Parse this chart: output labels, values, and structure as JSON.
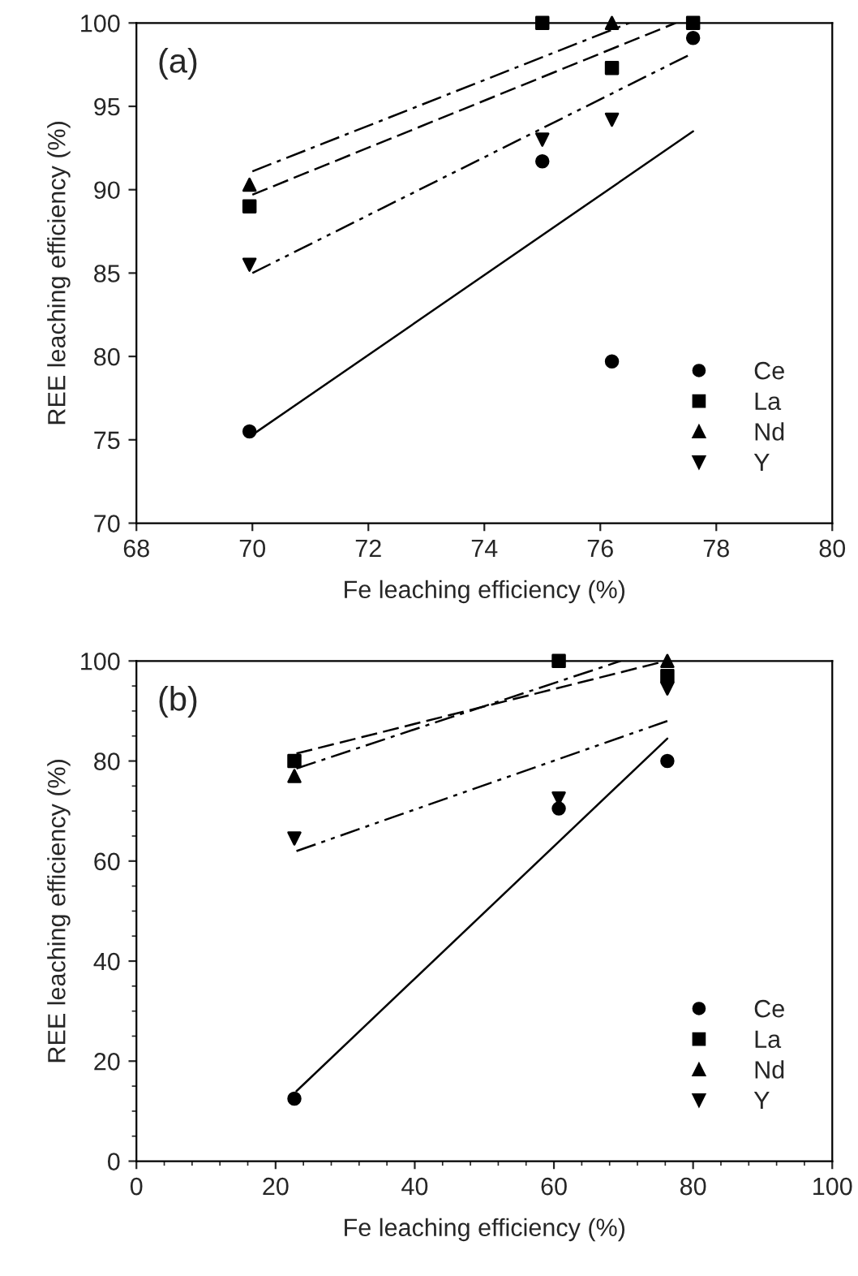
{
  "chart_data": [
    {
      "type": "scatter",
      "xlabel": "Fe leaching efficiency (%)",
      "ylabel": "REE leaching efficiency (%)",
      "annotations": [
        "(a)"
      ],
      "xlim": [
        68,
        80
      ],
      "xticks": [
        68,
        70,
        72,
        74,
        76,
        78,
        80
      ],
      "ylim": [
        70,
        100
      ],
      "yticks": [
        70,
        75,
        80,
        85,
        90,
        95,
        100
      ],
      "grid": false,
      "legend": "bottom right",
      "series": [
        {
          "name": "Ce",
          "marker": "circle",
          "color": "#000000",
          "x": [
            69.95,
            75,
            76.2,
            77.6
          ],
          "values": [
            75.5,
            91.7,
            79.7,
            99.1
          ]
        },
        {
          "name": "La",
          "marker": "square",
          "color": "#000000",
          "x": [
            69.95,
            75,
            76.2,
            77.6
          ],
          "values": [
            89,
            100,
            97.3,
            100
          ]
        },
        {
          "name": "Nd",
          "marker": "triangle",
          "color": "#000000",
          "x": [
            69.95,
            76.2
          ],
          "values": [
            90.3,
            100
          ]
        },
        {
          "name": "Y",
          "marker": "triangle_down",
          "color": "#000000",
          "x": [
            69.95,
            75,
            76.2
          ],
          "values": [
            85.5,
            93,
            94.2
          ]
        },
        {
          "type": "line",
          "line_style": "solid",
          "color": "#000000",
          "x": [
            70,
            77.6
          ],
          "values": [
            75.3,
            93.5
          ]
        },
        {
          "type": "line",
          "line_style": "dashed",
          "color": "#000000",
          "x": [
            70,
            77.3
          ],
          "values": [
            89.7,
            100
          ]
        },
        {
          "type": "line",
          "line_style": "dashdot",
          "color": "#000000",
          "x": [
            70,
            76.5
          ],
          "values": [
            91.1,
            100
          ]
        },
        {
          "type": "line",
          "line_style": "dashdotdot",
          "color": "#000000",
          "x": [
            70,
            77.6
          ],
          "values": [
            85,
            98.2
          ]
        }
      ]
    },
    {
      "type": "scatter",
      "xlabel": "Fe leaching efficiency (%)",
      "ylabel": "REE leaching efficiency (%)",
      "annotations": [
        "(b)"
      ],
      "xlim": [
        0,
        100
      ],
      "xticks": [
        0,
        {
          "value": 4,
          "label": null
        },
        {
          "value": 8,
          "label": null
        },
        {
          "value": 12,
          "label": null
        },
        {
          "value": 16,
          "label": null
        },
        20,
        {
          "value": 24,
          "label": null
        },
        {
          "value": 28,
          "label": null
        },
        {
          "value": 32,
          "label": null
        },
        {
          "value": 36,
          "label": null
        },
        40,
        {
          "value": 44,
          "label": null
        },
        {
          "value": 48,
          "label": null
        },
        {
          "value": 52,
          "label": null
        },
        {
          "value": 56,
          "label": null
        },
        60,
        {
          "value": 64,
          "label": null
        },
        {
          "value": 68,
          "label": null
        },
        {
          "value": 72,
          "label": null
        },
        {
          "value": 76,
          "label": null
        },
        80,
        {
          "value": 84,
          "label": null
        },
        {
          "value": 88,
          "label": null
        },
        {
          "value": 92,
          "label": null
        },
        {
          "value": 96,
          "label": null
        },
        100
      ],
      "ylim": [
        0,
        100
      ],
      "yticks": [
        0,
        {
          "value": 5,
          "label": null
        },
        {
          "value": 10,
          "label": null
        },
        {
          "value": 15,
          "label": null
        },
        20,
        {
          "value": 25,
          "label": null
        },
        {
          "value": 30,
          "label": null
        },
        {
          "value": 35,
          "label": null
        },
        40,
        {
          "value": 45,
          "label": null
        },
        {
          "value": 50,
          "label": null
        },
        {
          "value": 55,
          "label": null
        },
        60,
        {
          "value": 65,
          "label": null
        },
        {
          "value": 70,
          "label": null
        },
        {
          "value": 75,
          "label": null
        },
        80,
        {
          "value": 85,
          "label": null
        },
        {
          "value": 90,
          "label": null
        },
        {
          "value": 95,
          "label": null
        },
        100
      ],
      "grid": false,
      "legend": "bottom right",
      "series": [
        {
          "name": "Ce",
          "marker": "circle",
          "color": "#000000",
          "x": [
            22.7,
            60.7,
            76.3
          ],
          "values": [
            12.5,
            70.5,
            80
          ]
        },
        {
          "name": "La",
          "marker": "square",
          "color": "#000000",
          "x": [
            22.7,
            60.7,
            76.3
          ],
          "values": [
            80,
            100,
            97
          ]
        },
        {
          "name": "Nd",
          "marker": "triangle",
          "color": "#000000",
          "x": [
            22.7,
            76.3
          ],
          "values": [
            77,
            100
          ]
        },
        {
          "name": "Y",
          "marker": "triangle_down",
          "color": "#000000",
          "x": [
            22.7,
            60.7,
            76.3
          ],
          "values": [
            64.5,
            72.5,
            94.5
          ]
        },
        {
          "type": "line",
          "line_style": "solid",
          "color": "#000000",
          "x": [
            23,
            76.3
          ],
          "values": [
            14,
            84.5
          ]
        },
        {
          "type": "line",
          "line_style": "dashed",
          "color": "#000000",
          "x": [
            23,
            76.1
          ],
          "values": [
            81.5,
            100
          ]
        },
        {
          "type": "line",
          "line_style": "dashdot",
          "color": "#000000",
          "x": [
            23,
            69.6
          ],
          "values": [
            78.5,
            100
          ]
        },
        {
          "type": "line",
          "line_style": "dashdotdot",
          "color": "#000000",
          "x": [
            23,
            76.3
          ],
          "values": [
            62,
            88
          ]
        }
      ]
    }
  ]
}
